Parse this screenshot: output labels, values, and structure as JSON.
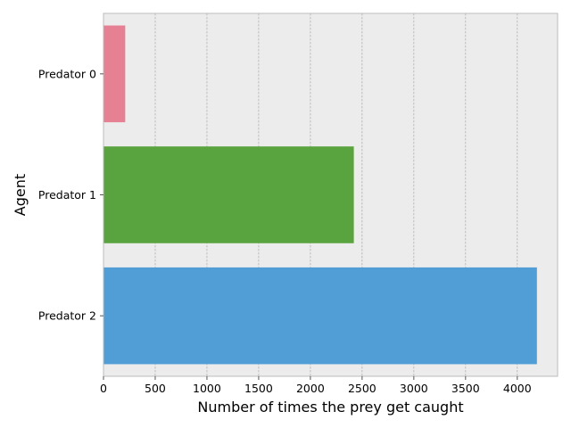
{
  "chart_data": {
    "type": "bar",
    "orientation": "horizontal",
    "categories": [
      "Predator 0",
      "Predator 1",
      "Predator 2"
    ],
    "values": [
      210,
      2420,
      4190
    ],
    "colors": [
      "#e68193",
      "#5aa43f",
      "#519ed6"
    ],
    "xlabel": "Number of times the prey get caught",
    "ylabel": "Agent",
    "xlim": [
      0,
      4390
    ],
    "xticks": [
      0,
      500,
      1000,
      1500,
      2000,
      2500,
      3000,
      3500,
      4000
    ],
    "xtick_labels": [
      "0",
      "500",
      "1000",
      "1500",
      "2000",
      "2500",
      "3000",
      "3500",
      "4000"
    ],
    "grid": "vertical dashed",
    "background": "#ececec",
    "legend": "none"
  }
}
